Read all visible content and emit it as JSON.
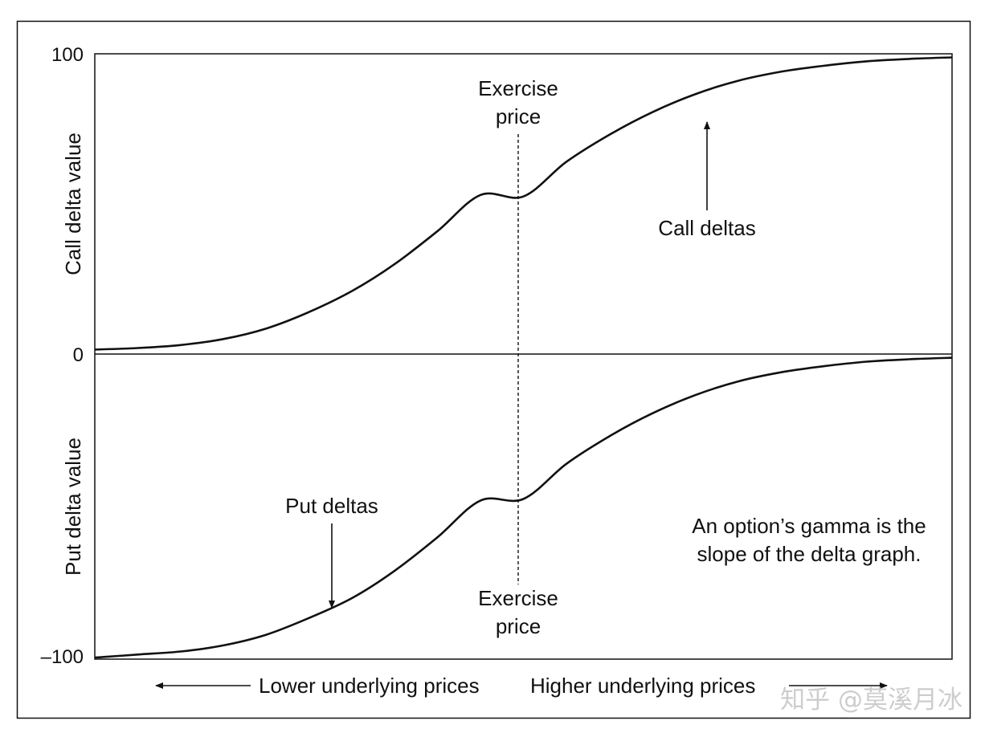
{
  "chart_data": {
    "type": "line",
    "title": "",
    "colors": {
      "line": "#111111",
      "watermark": "#c8c8c8",
      "background": "#ffffff"
    },
    "call_panel": {
      "ylabel": "Call delta value",
      "ylim": [
        0,
        100
      ],
      "y_ticks": [
        "100",
        "0"
      ],
      "series": [
        {
          "name": "Call deltas",
          "x": [
            0,
            0.05,
            0.1,
            0.15,
            0.2,
            0.25,
            0.3,
            0.35,
            0.4,
            0.45,
            0.5,
            0.55,
            0.6,
            0.65,
            0.7,
            0.75,
            0.8,
            0.85,
            0.9,
            0.95,
            1.0
          ],
          "y": [
            1.5,
            2,
            3,
            5,
            8.5,
            14,
            21,
            30,
            41,
            53,
            52.5,
            64,
            73,
            80.5,
            86.5,
            91,
            94,
            96,
            97.5,
            98.3,
            98.8
          ]
        }
      ]
    },
    "put_panel": {
      "ylabel": "Put delta value",
      "ylim": [
        -100,
        0
      ],
      "y_ticks": [
        "0",
        "–100"
      ],
      "series": [
        {
          "name": "Put deltas",
          "x": [
            0,
            0.05,
            0.1,
            0.15,
            0.2,
            0.25,
            0.3,
            0.35,
            0.4,
            0.45,
            0.5,
            0.55,
            0.6,
            0.65,
            0.7,
            0.75,
            0.8,
            0.85,
            0.9,
            0.95,
            1.0
          ],
          "y": [
            -99.5,
            -98.5,
            -97.5,
            -95.5,
            -92,
            -86.5,
            -80,
            -71,
            -60,
            -48,
            -47.5,
            -36,
            -27,
            -19.5,
            -13.5,
            -9,
            -6,
            -4,
            -2.5,
            -1.7,
            -1.2
          ]
        }
      ]
    },
    "annotations": {
      "exercise_top": [
        "Exercise",
        "price"
      ],
      "exercise_bottom": [
        "Exercise",
        "price"
      ],
      "call_label": "Call deltas",
      "put_label": "Put deltas",
      "gamma_note": [
        "An option’s gamma is the",
        "slope of the delta graph."
      ]
    },
    "x_axis": {
      "lower_label": "Lower underlying prices",
      "higher_label": "Higher underlying prices"
    }
  },
  "watermark": "知乎 @莫溪月冰"
}
